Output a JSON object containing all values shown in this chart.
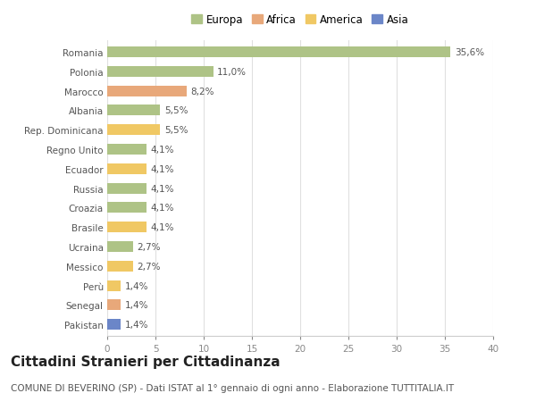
{
  "countries": [
    "Romania",
    "Polonia",
    "Marocco",
    "Albania",
    "Rep. Dominicana",
    "Regno Unito",
    "Ecuador",
    "Russia",
    "Croazia",
    "Brasile",
    "Ucraina",
    "Messico",
    "Perù",
    "Senegal",
    "Pakistan"
  ],
  "values": [
    35.6,
    11.0,
    8.2,
    5.5,
    5.5,
    4.1,
    4.1,
    4.1,
    4.1,
    4.1,
    2.7,
    2.7,
    1.4,
    1.4,
    1.4
  ],
  "labels": [
    "35,6%",
    "11,0%",
    "8,2%",
    "5,5%",
    "5,5%",
    "4,1%",
    "4,1%",
    "4,1%",
    "4,1%",
    "4,1%",
    "2,7%",
    "2,7%",
    "1,4%",
    "1,4%",
    "1,4%"
  ],
  "continents": [
    "Europa",
    "Europa",
    "Africa",
    "Europa",
    "America",
    "Europa",
    "America",
    "Europa",
    "Europa",
    "America",
    "Europa",
    "America",
    "America",
    "Africa",
    "Asia"
  ],
  "continent_colors": {
    "Europa": "#aec386",
    "Africa": "#e8a87a",
    "America": "#f0c864",
    "Asia": "#6b86c8"
  },
  "legend_order": [
    "Europa",
    "Africa",
    "America",
    "Asia"
  ],
  "title": "Cittadini Stranieri per Cittadinanza",
  "subtitle": "COMUNE DI BEVERINO (SP) - Dati ISTAT al 1° gennaio di ogni anno - Elaborazione TUTTITALIA.IT",
  "xlim": [
    0,
    40
  ],
  "xticks": [
    0,
    5,
    10,
    15,
    20,
    25,
    30,
    35,
    40
  ],
  "background_color": "#ffffff",
  "grid_color": "#e0e0e0",
  "bar_height": 0.55,
  "title_fontsize": 11,
  "subtitle_fontsize": 7.5,
  "label_fontsize": 7.5,
  "tick_fontsize": 7.5,
  "legend_fontsize": 8.5
}
